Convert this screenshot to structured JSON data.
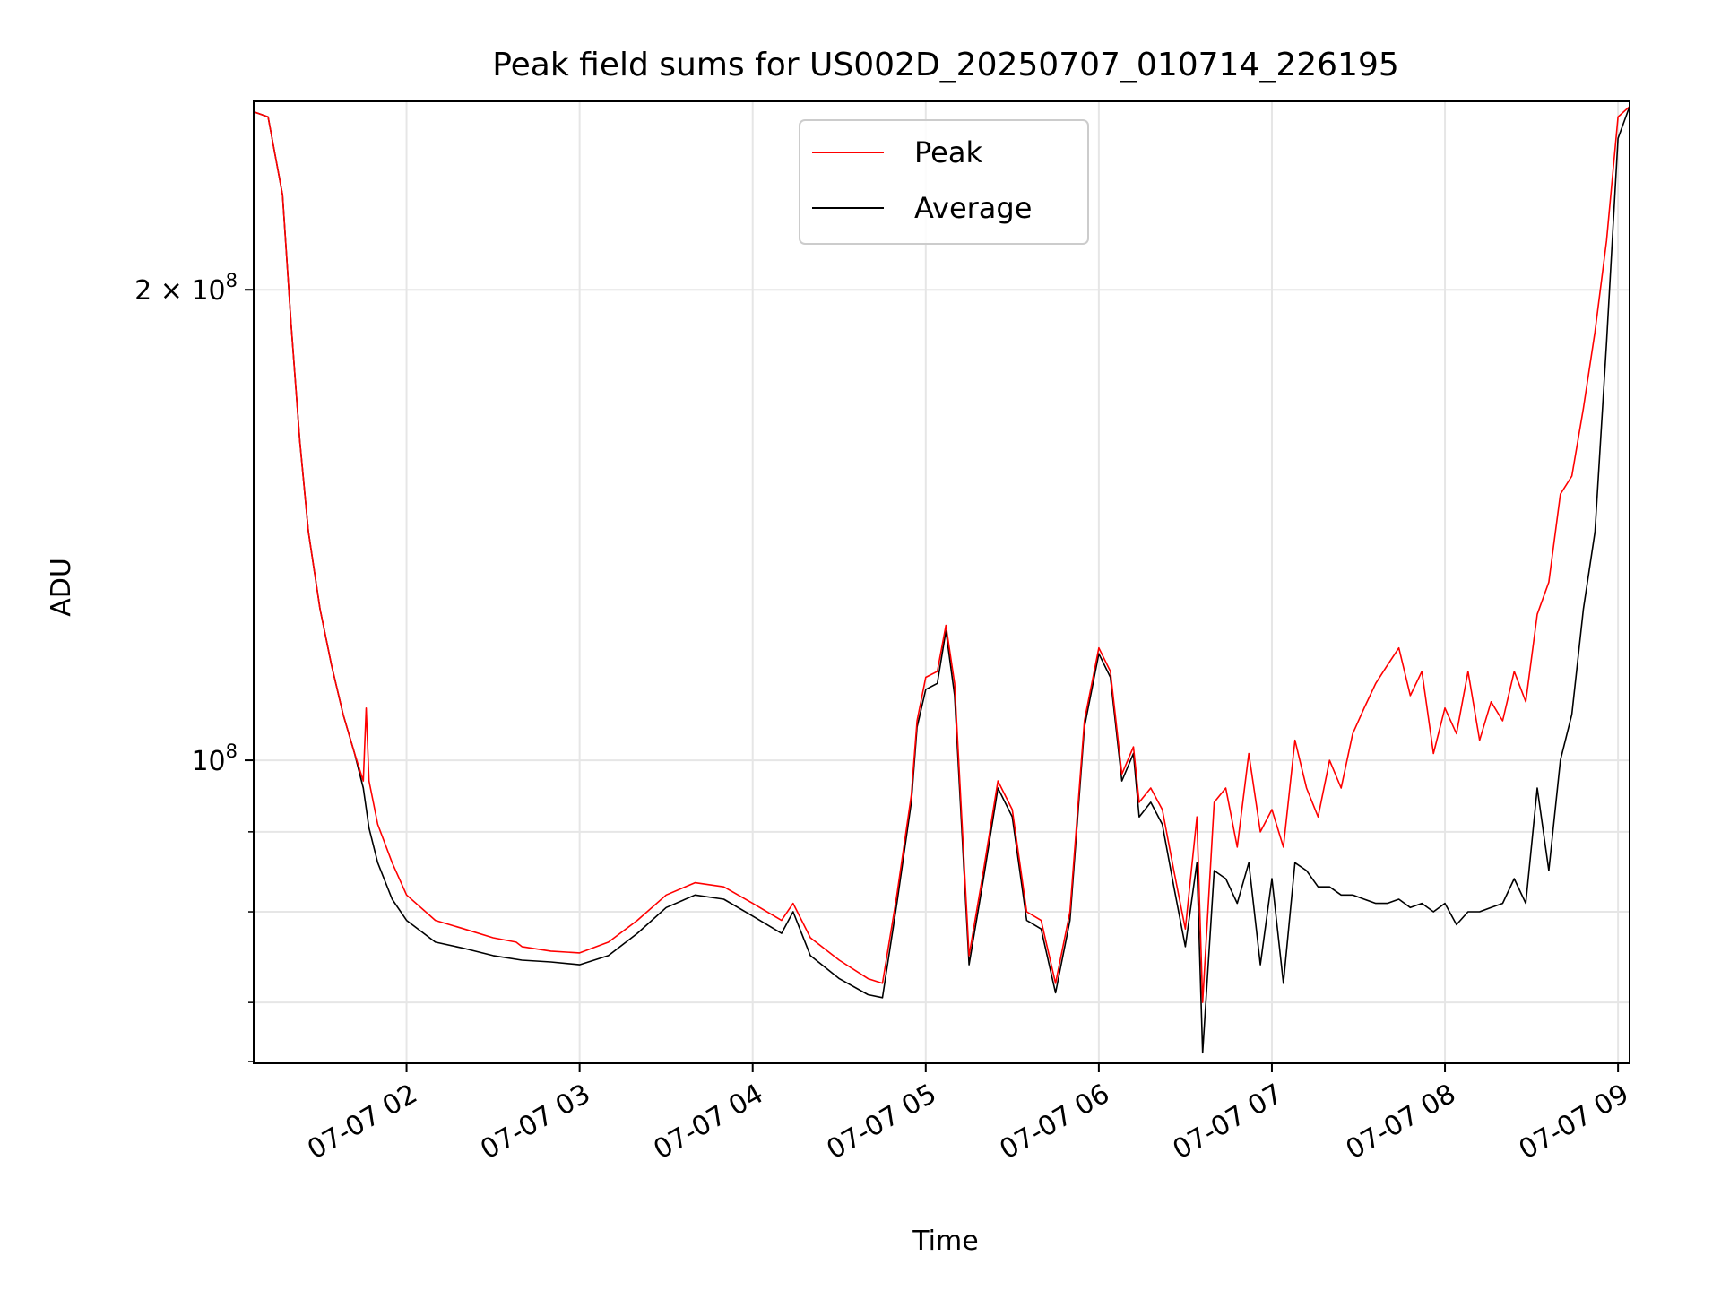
{
  "chart_data": {
    "type": "line",
    "title": "Peak field sums for US002D_20250707_010714_226195",
    "xlabel": "Time",
    "ylabel": "ADU",
    "y_scale": "log",
    "ylim": [
      64000000,
      264000000
    ],
    "xlim": [
      "2025-07-07 01:07",
      "2025-07-07 09:04"
    ],
    "x_ticks": [
      {
        "value": "2025-07-07 02:00",
        "label": "07-07 02"
      },
      {
        "value": "2025-07-07 03:00",
        "label": "07-07 03"
      },
      {
        "value": "2025-07-07 04:00",
        "label": "07-07 04"
      },
      {
        "value": "2025-07-07 05:00",
        "label": "07-07 05"
      },
      {
        "value": "2025-07-07 06:00",
        "label": "07-07 06"
      },
      {
        "value": "2025-07-07 07:00",
        "label": "07-07 07"
      },
      {
        "value": "2025-07-07 08:00",
        "label": "07-07 08"
      },
      {
        "value": "2025-07-07 09:00",
        "label": "07-07 09"
      }
    ],
    "y_major_ticks": [
      {
        "value": 100000000,
        "base": "10",
        "exp": "8",
        "mantissa": ""
      },
      {
        "value": 200000000,
        "base": "10",
        "exp": "8",
        "mantissa": "2 × "
      }
    ],
    "y_minor_ticks": [
      70000000,
      80000000,
      90000000
    ],
    "grid": true,
    "legend": "top-center",
    "series": [
      {
        "name": "Peak",
        "color": "#ff0000",
        "x": [
          "2025-07-07 01:07",
          "2025-07-07 01:12",
          "2025-07-07 01:17",
          "2025-07-07 01:20",
          "2025-07-07 01:23",
          "2025-07-07 01:26",
          "2025-07-07 01:30",
          "2025-07-07 01:34",
          "2025-07-07 01:38",
          "2025-07-07 01:42",
          "2025-07-07 01:45",
          "2025-07-07 01:46",
          "2025-07-07 01:47",
          "2025-07-07 01:50",
          "2025-07-07 01:55",
          "2025-07-07 02:00",
          "2025-07-07 02:10",
          "2025-07-07 02:20",
          "2025-07-07 02:30",
          "2025-07-07 02:38",
          "2025-07-07 02:40",
          "2025-07-07 02:50",
          "2025-07-07 03:00",
          "2025-07-07 03:10",
          "2025-07-07 03:20",
          "2025-07-07 03:30",
          "2025-07-07 03:40",
          "2025-07-07 03:50",
          "2025-07-07 04:00",
          "2025-07-07 04:10",
          "2025-07-07 04:14",
          "2025-07-07 04:20",
          "2025-07-07 04:30",
          "2025-07-07 04:40",
          "2025-07-07 04:45",
          "2025-07-07 04:50",
          "2025-07-07 04:55",
          "2025-07-07 04:57",
          "2025-07-07 05:00",
          "2025-07-07 05:04",
          "2025-07-07 05:07",
          "2025-07-07 05:10",
          "2025-07-07 05:15",
          "2025-07-07 05:20",
          "2025-07-07 05:25",
          "2025-07-07 05:30",
          "2025-07-07 05:35",
          "2025-07-07 05:40",
          "2025-07-07 05:45",
          "2025-07-07 05:50",
          "2025-07-07 05:55",
          "2025-07-07 06:00",
          "2025-07-07 06:04",
          "2025-07-07 06:08",
          "2025-07-07 06:12",
          "2025-07-07 06:14",
          "2025-07-07 06:18",
          "2025-07-07 06:22",
          "2025-07-07 06:26",
          "2025-07-07 06:30",
          "2025-07-07 06:34",
          "2025-07-07 06:36",
          "2025-07-07 06:40",
          "2025-07-07 06:44",
          "2025-07-07 06:48",
          "2025-07-07 06:52",
          "2025-07-07 06:56",
          "2025-07-07 07:00",
          "2025-07-07 07:04",
          "2025-07-07 07:08",
          "2025-07-07 07:12",
          "2025-07-07 07:16",
          "2025-07-07 07:20",
          "2025-07-07 07:24",
          "2025-07-07 07:28",
          "2025-07-07 07:32",
          "2025-07-07 07:36",
          "2025-07-07 07:40",
          "2025-07-07 07:44",
          "2025-07-07 07:48",
          "2025-07-07 07:52",
          "2025-07-07 07:56",
          "2025-07-07 08:00",
          "2025-07-07 08:04",
          "2025-07-07 08:08",
          "2025-07-07 08:12",
          "2025-07-07 08:16",
          "2025-07-07 08:20",
          "2025-07-07 08:24",
          "2025-07-07 08:28",
          "2025-07-07 08:32",
          "2025-07-07 08:36",
          "2025-07-07 08:40",
          "2025-07-07 08:44",
          "2025-07-07 08:48",
          "2025-07-07 08:52",
          "2025-07-07 08:56",
          "2025-07-07 09:00",
          "2025-07-07 09:04"
        ],
        "values": [
          260000000,
          258000000,
          230000000,
          190000000,
          160000000,
          140000000,
          125000000,
          115000000,
          107000000,
          101000000,
          97000000,
          108000000,
          97000000,
          91000000,
          86000000,
          82000000,
          79000000,
          78000000,
          77000000,
          76500000,
          76000000,
          75500000,
          75300000,
          76500000,
          79000000,
          82000000,
          83500000,
          83000000,
          81000000,
          79000000,
          81000000,
          77000000,
          74500000,
          72500000,
          72000000,
          82000000,
          95000000,
          106000000,
          113000000,
          114000000,
          122000000,
          112000000,
          75000000,
          85000000,
          97000000,
          93000000,
          80000000,
          79000000,
          72000000,
          80000000,
          106000000,
          118000000,
          114000000,
          98000000,
          102000000,
          94000000,
          96000000,
          93000000,
          85000000,
          78000000,
          92000000,
          70000000,
          94000000,
          96000000,
          88000000,
          101000000,
          90000000,
          93000000,
          88000000,
          103000000,
          96000000,
          92000000,
          100000000,
          96000000,
          104000000,
          108000000,
          112000000,
          115000000,
          118000000,
          110000000,
          114000000,
          101000000,
          108000000,
          104000000,
          114000000,
          103000000,
          109000000,
          106000000,
          114000000,
          109000000,
          124000000,
          130000000,
          148000000,
          152000000,
          168000000,
          188000000,
          215000000,
          258000000,
          262000000
        ]
      },
      {
        "name": "Average",
        "color": "#000000",
        "x": [
          "2025-07-07 01:07",
          "2025-07-07 01:12",
          "2025-07-07 01:17",
          "2025-07-07 01:20",
          "2025-07-07 01:23",
          "2025-07-07 01:26",
          "2025-07-07 01:30",
          "2025-07-07 01:34",
          "2025-07-07 01:38",
          "2025-07-07 01:42",
          "2025-07-07 01:45",
          "2025-07-07 01:47",
          "2025-07-07 01:50",
          "2025-07-07 01:55",
          "2025-07-07 02:00",
          "2025-07-07 02:10",
          "2025-07-07 02:20",
          "2025-07-07 02:30",
          "2025-07-07 02:40",
          "2025-07-07 02:50",
          "2025-07-07 03:00",
          "2025-07-07 03:10",
          "2025-07-07 03:20",
          "2025-07-07 03:30",
          "2025-07-07 03:40",
          "2025-07-07 03:50",
          "2025-07-07 04:00",
          "2025-07-07 04:10",
          "2025-07-07 04:14",
          "2025-07-07 04:20",
          "2025-07-07 04:30",
          "2025-07-07 04:40",
          "2025-07-07 04:45",
          "2025-07-07 04:50",
          "2025-07-07 04:55",
          "2025-07-07 04:57",
          "2025-07-07 05:00",
          "2025-07-07 05:04",
          "2025-07-07 05:07",
          "2025-07-07 05:10",
          "2025-07-07 05:15",
          "2025-07-07 05:20",
          "2025-07-07 05:25",
          "2025-07-07 05:30",
          "2025-07-07 05:35",
          "2025-07-07 05:40",
          "2025-07-07 05:45",
          "2025-07-07 05:50",
          "2025-07-07 05:55",
          "2025-07-07 06:00",
          "2025-07-07 06:04",
          "2025-07-07 06:08",
          "2025-07-07 06:12",
          "2025-07-07 06:14",
          "2025-07-07 06:18",
          "2025-07-07 06:22",
          "2025-07-07 06:26",
          "2025-07-07 06:30",
          "2025-07-07 06:34",
          "2025-07-07 06:36",
          "2025-07-07 06:40",
          "2025-07-07 06:44",
          "2025-07-07 06:48",
          "2025-07-07 06:52",
          "2025-07-07 06:56",
          "2025-07-07 07:00",
          "2025-07-07 07:04",
          "2025-07-07 07:08",
          "2025-07-07 07:12",
          "2025-07-07 07:16",
          "2025-07-07 07:20",
          "2025-07-07 07:24",
          "2025-07-07 07:28",
          "2025-07-07 07:32",
          "2025-07-07 07:36",
          "2025-07-07 07:40",
          "2025-07-07 07:44",
          "2025-07-07 07:48",
          "2025-07-07 07:52",
          "2025-07-07 07:56",
          "2025-07-07 08:00",
          "2025-07-07 08:04",
          "2025-07-07 08:08",
          "2025-07-07 08:12",
          "2025-07-07 08:16",
          "2025-07-07 08:20",
          "2025-07-07 08:24",
          "2025-07-07 08:28",
          "2025-07-07 08:32",
          "2025-07-07 08:36",
          "2025-07-07 08:40",
          "2025-07-07 08:44",
          "2025-07-07 08:48",
          "2025-07-07 08:52",
          "2025-07-07 08:56",
          "2025-07-07 09:00",
          "2025-07-07 09:04"
        ],
        "values": [
          260000000,
          258000000,
          230000000,
          190000000,
          160000000,
          140000000,
          125000000,
          115000000,
          107000000,
          101000000,
          96000000,
          90500000,
          86000000,
          81500000,
          79000000,
          76500000,
          75800000,
          75000000,
          74500000,
          74300000,
          74000000,
          75000000,
          77500000,
          80500000,
          82000000,
          81500000,
          79500000,
          77500000,
          80000000,
          75000000,
          72500000,
          70800000,
          70500000,
          81000000,
          94000000,
          105000000,
          111000000,
          112000000,
          121000000,
          110000000,
          74000000,
          84000000,
          96000000,
          92000000,
          79000000,
          78000000,
          71000000,
          79000000,
          105000000,
          117000000,
          113000000,
          97000000,
          101000000,
          92000000,
          94000000,
          91000000,
          83000000,
          76000000,
          86000000,
          65000000,
          85000000,
          84000000,
          81000000,
          86000000,
          74000000,
          84000000,
          72000000,
          86000000,
          85000000,
          83000000,
          83000000,
          82000000,
          82000000,
          81500000,
          81000000,
          81000000,
          81500000,
          80500000,
          81000000,
          80000000,
          81000000,
          78500000,
          80000000,
          80000000,
          80500000,
          81000000,
          84000000,
          81000000,
          96000000,
          85000000,
          100000000,
          107000000,
          125000000,
          140000000,
          185000000,
          250000000,
          262000000
        ]
      }
    ]
  }
}
